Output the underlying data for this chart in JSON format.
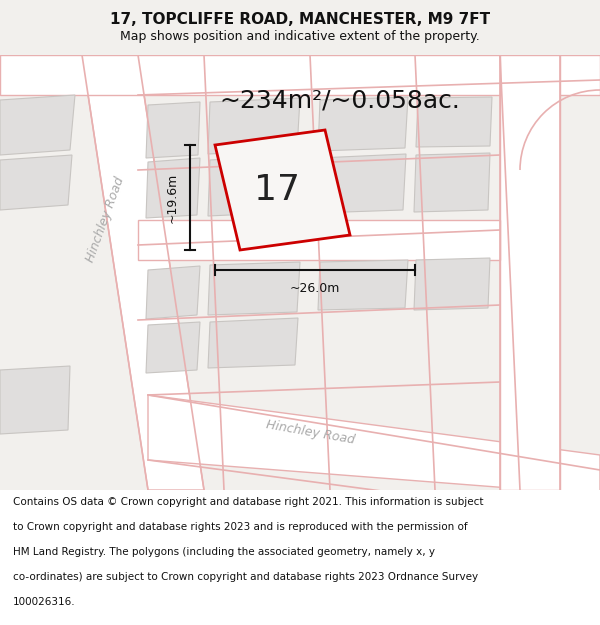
{
  "title_line1": "17, TOPCLIFFE ROAD, MANCHESTER, M9 7FT",
  "title_line2": "Map shows position and indicative extent of the property.",
  "area_label": "~234m²/~0.058ac.",
  "number_label": "17",
  "width_label": "~26.0m",
  "height_label": "~19.6m",
  "road_label_left": "Hinchley Road",
  "road_label_bottom": "Hinchley Road",
  "footer_lines": [
    "Contains OS data © Crown copyright and database right 2021. This information is subject",
    "to Crown copyright and database rights 2023 and is reproduced with the permission of",
    "HM Land Registry. The polygons (including the associated geometry, namely x, y",
    "co-ordinates) are subject to Crown copyright and database rights 2023 Ordnance Survey",
    "100026316."
  ],
  "bg_color": "#f2f0ed",
  "map_bg": "#f2f0ed",
  "footer_bg": "#ffffff",
  "building_fill": "#e0dedd",
  "building_stroke": "#c8c5c2",
  "pink_color": "#e8b0b0",
  "red_plot_color": "#cc0000",
  "dim_color": "#111111",
  "road_label_color": "#aaaaaa",
  "title_fontsize": 11,
  "subtitle_fontsize": 9,
  "footer_fontsize": 7.5,
  "area_fontsize": 18,
  "number_fontsize": 26
}
